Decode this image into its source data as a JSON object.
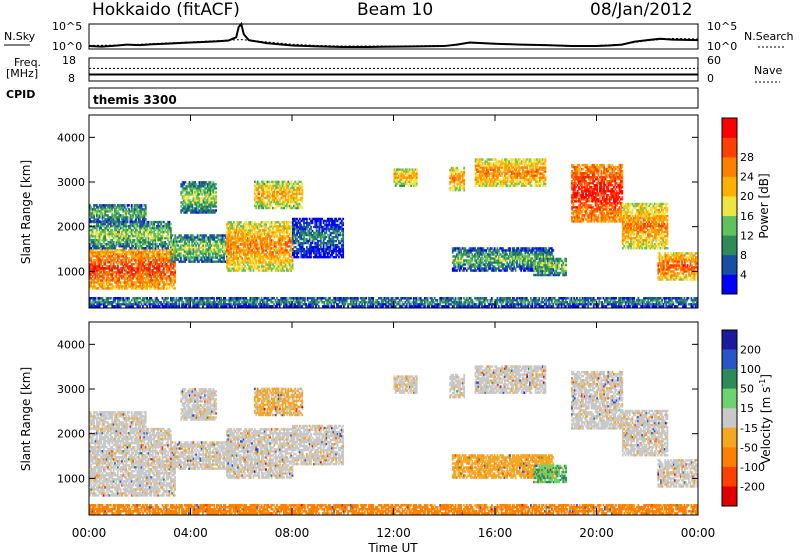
{
  "header": {
    "site": "Hokkaido (fitACF)",
    "beam": "Beam 10",
    "date": "08/Jan/2012"
  },
  "noise_panel": {
    "left_label": "N.Sky",
    "right_label": "N.Search",
    "left_ticks": [
      "10^5",
      "10^0"
    ],
    "right_ticks": [
      "10^5",
      "10^0"
    ],
    "series_sky": [
      [
        0,
        1
      ],
      [
        0.5,
        0.8
      ],
      [
        1,
        1.1
      ],
      [
        1.5,
        1.5
      ],
      [
        2,
        1.3
      ],
      [
        2.5,
        1.6
      ],
      [
        3,
        1.8
      ],
      [
        3.5,
        2.0
      ],
      [
        4,
        2.2
      ],
      [
        4.5,
        2.4
      ],
      [
        5,
        2.6
      ],
      [
        5.5,
        2.9
      ],
      [
        5.8,
        4.0
      ],
      [
        5.9,
        7.5
      ],
      [
        6.0,
        8.5
      ],
      [
        6.1,
        5.0
      ],
      [
        6.3,
        3.0
      ],
      [
        7,
        2.0
      ],
      [
        8,
        1.2
      ],
      [
        9,
        0.9
      ],
      [
        10,
        0.7
      ],
      [
        11,
        0.7
      ],
      [
        12,
        0.8
      ],
      [
        13,
        0.9
      ],
      [
        14,
        1.0
      ],
      [
        14.5,
        1.5
      ],
      [
        15,
        2.2
      ],
      [
        15.5,
        2.0
      ],
      [
        16,
        1.8
      ],
      [
        17,
        1.5
      ],
      [
        18,
        1.3
      ],
      [
        19,
        1.0
      ],
      [
        20,
        1.0
      ],
      [
        20.5,
        1.2
      ],
      [
        21,
        1.5
      ],
      [
        21.5,
        2.5
      ],
      [
        22,
        3.0
      ],
      [
        22.5,
        3.5
      ],
      [
        23,
        3.2
      ],
      [
        24,
        3.0
      ]
    ],
    "series_search": [
      [
        0,
        1.2
      ],
      [
        1,
        1.3
      ],
      [
        2,
        1.6
      ],
      [
        3,
        2.0
      ],
      [
        4,
        2.4
      ],
      [
        5,
        2.8
      ],
      [
        6,
        3.2
      ],
      [
        7,
        2.4
      ],
      [
        8,
        1.6
      ],
      [
        9,
        1.2
      ],
      [
        10,
        1.0
      ],
      [
        12,
        1.0
      ],
      [
        14,
        1.2
      ],
      [
        15,
        2.0
      ],
      [
        16,
        1.9
      ],
      [
        17,
        1.6
      ],
      [
        18,
        1.4
      ],
      [
        19,
        1.2
      ],
      [
        20,
        1.2
      ],
      [
        21,
        1.6
      ],
      [
        22,
        2.8
      ],
      [
        23,
        3.6
      ],
      [
        24,
        3.4
      ]
    ]
  },
  "freq_panel": {
    "left_label_line1": "Freq.",
    "left_label_line2": "[MHz]",
    "right_label": "Nave",
    "left_ticks": [
      "18",
      "8"
    ],
    "right_ticks": [
      "60",
      "0"
    ],
    "freq_mhz": 10.8,
    "nave": 33
  },
  "cpid_panel": {
    "label": "CPID",
    "program": "themis 3300"
  },
  "colorbar_power": {
    "label": "Power [dB]",
    "ticks": [
      "4",
      "8",
      "12",
      "16",
      "20",
      "24",
      "28"
    ],
    "colors": [
      "#0000ff",
      "#174ea6",
      "#2e8b57",
      "#5fc25f",
      "#f0e442",
      "#ffb000",
      "#ff7f00",
      "#ff4000",
      "#ff0000"
    ]
  },
  "colorbar_velocity": {
    "label": "Velocity [m s",
    "label_sup": "-1",
    "label_end": "]",
    "ticks": [
      "200",
      "100",
      "50",
      "15",
      "-15",
      "-50",
      "-100",
      "-200"
    ],
    "colors": [
      "#1a1aa0",
      "#2a55c8",
      "#2e8b57",
      "#6dd36d",
      "#c8c8c8",
      "#f5a623",
      "#ff8000",
      "#ff4000",
      "#e00000"
    ]
  },
  "axes": {
    "x_ticks": [
      "00:00",
      "04:00",
      "08:00",
      "12:00",
      "16:00",
      "20:00",
      "00:00"
    ],
    "x_label": "Time UT",
    "y_label": "Slant Range [km]",
    "y_ticks": [
      "1000",
      "2000",
      "3000",
      "4000"
    ]
  },
  "chart_data": {
    "type": "heatmap",
    "title": "Hokkaido (fitACF) Beam 10 08/Jan/2012",
    "xlabel": "Time UT",
    "ylabel": "Slant Range [km]",
    "xlim_hours": [
      0,
      24
    ],
    "ylim_km": [
      180,
      4500
    ],
    "power_db_range": [
      0,
      30
    ],
    "velocity_range": [
      -250,
      250
    ],
    "echo_regions": [
      {
        "t": [
          0.0,
          3.4
        ],
        "r": [
          600,
          1500
        ],
        "power_db": 26,
        "velocity": -5
      },
      {
        "t": [
          0.0,
          3.2
        ],
        "r": [
          1500,
          2100
        ],
        "power_db": 14,
        "velocity": -5
      },
      {
        "t": [
          0.0,
          2.2
        ],
        "r": [
          2100,
          2500
        ],
        "power_db": 12,
        "velocity": -5
      },
      {
        "t": [
          3.2,
          5.6
        ],
        "r": [
          1200,
          1800
        ],
        "power_db": 14,
        "velocity": -5
      },
      {
        "t": [
          5.4,
          8.0
        ],
        "r": [
          1000,
          2100
        ],
        "power_db": 22,
        "velocity": -5
      },
      {
        "t": [
          3.6,
          5.0
        ],
        "r": [
          2300,
          3000
        ],
        "power_db": 14,
        "velocity": -5
      },
      {
        "t": [
          6.5,
          8.4
        ],
        "r": [
          2400,
          3000
        ],
        "power_db": 20,
        "velocity": -20
      },
      {
        "t": [
          8.0,
          10.0
        ],
        "r": [
          1300,
          2200
        ],
        "power_db": 8,
        "velocity": -5
      },
      {
        "t": [
          12.0,
          12.9
        ],
        "r": [
          2900,
          3300
        ],
        "power_db": 20,
        "velocity": -5
      },
      {
        "t": [
          14.2,
          14.8
        ],
        "r": [
          2800,
          3300
        ],
        "power_db": 22,
        "velocity": -5
      },
      {
        "t": [
          15.2,
          18.0
        ],
        "r": [
          2900,
          3500
        ],
        "power_db": 22,
        "velocity": -5
      },
      {
        "t": [
          14.3,
          18.3
        ],
        "r": [
          1000,
          1500
        ],
        "power_db": 12,
        "velocity": -40
      },
      {
        "t": [
          17.5,
          18.8
        ],
        "r": [
          900,
          1300
        ],
        "power_db": 14,
        "velocity": 30
      },
      {
        "t": [
          19.0,
          21.0
        ],
        "r": [
          2100,
          3400
        ],
        "power_db": 28,
        "velocity": -5
      },
      {
        "t": [
          21.0,
          22.8
        ],
        "r": [
          1500,
          2500
        ],
        "power_db": 22,
        "velocity": -5
      },
      {
        "t": [
          22.4,
          24.0
        ],
        "r": [
          800,
          1400
        ],
        "power_db": 24,
        "velocity": -5
      },
      {
        "t": [
          0.0,
          24.0
        ],
        "r": [
          200,
          420
        ],
        "power_db": 10,
        "velocity": -60
      }
    ]
  }
}
